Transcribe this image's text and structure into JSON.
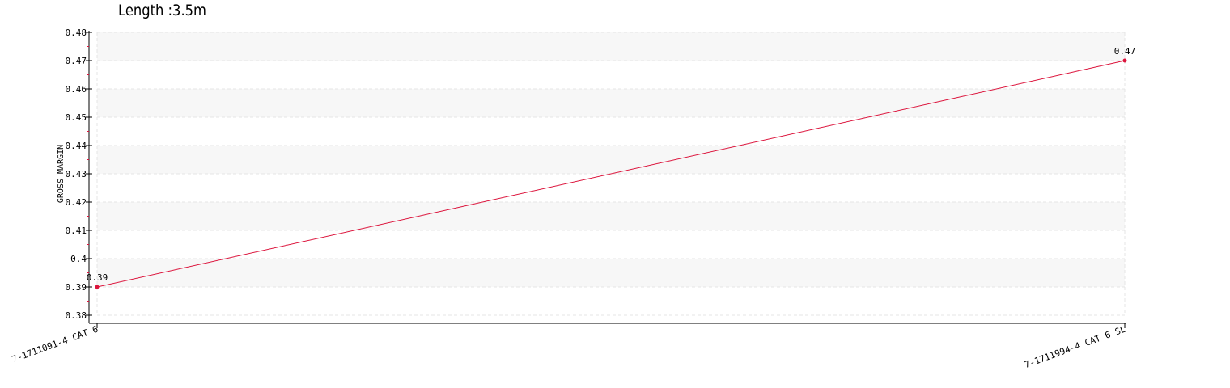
{
  "chart_data": {
    "type": "line",
    "title": "Length :3.5m",
    "ylabel": "GROSS MARGIN",
    "xlabel": "",
    "categories": [
      "7-1711091-4 CAT 6",
      "7-1711994-4 CAT 6 SL"
    ],
    "series": [
      {
        "values": [
          0.39,
          0.47
        ],
        "color": "#dc143c"
      }
    ],
    "data_labels": [
      "0.39",
      "0.47"
    ],
    "ylim": [
      0.38,
      0.48
    ],
    "yticks": [
      "0.38",
      "0.39",
      "0.4",
      "0.41",
      "0.42",
      "0.43",
      "0.44",
      "0.45",
      "0.46",
      "0.47",
      "0.48"
    ],
    "grid": true,
    "band_color": "#f7f7f7",
    "grid_color": "#e4e4e4",
    "axis_color": "#000000",
    "minor_tick_color": "#dc143c"
  }
}
